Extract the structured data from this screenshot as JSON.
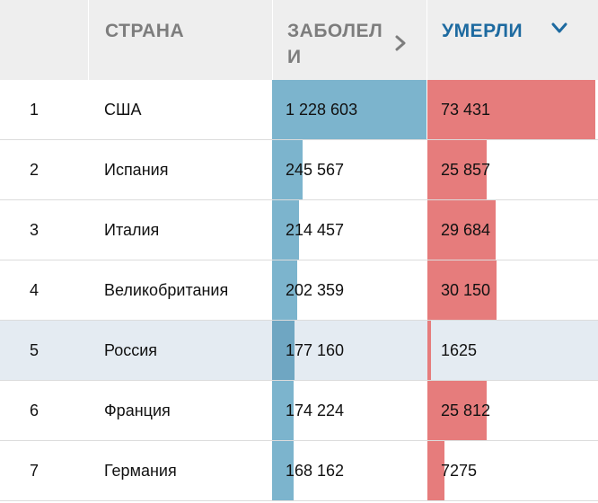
{
  "header": {
    "num_label": "",
    "country_label": "СТРАНА",
    "cases_label": "ЗАБОЛЕЛИ",
    "deaths_label": "УМЕРЛИ"
  },
  "icons": {
    "cases_sort": "chevron-right-icon",
    "deaths_sort": "chevron-down-icon"
  },
  "colors": {
    "cases_bar": "#7cb4cd",
    "deaths_bar": "#e67c7c",
    "active_header": "#1d6aa0",
    "highlight_row": "#e4ebf2"
  },
  "rows": [
    {
      "rank": "1",
      "country": "США",
      "cases": "1 228 603",
      "deaths": "73 431",
      "highlight": false
    },
    {
      "rank": "2",
      "country": "Испания",
      "cases": "245 567",
      "deaths": "25 857",
      "highlight": false
    },
    {
      "rank": "3",
      "country": "Италия",
      "cases": "214 457",
      "deaths": "29 684",
      "highlight": false
    },
    {
      "rank": "4",
      "country": "Великобритания",
      "cases": "202 359",
      "deaths": "30 150",
      "highlight": false
    },
    {
      "rank": "5",
      "country": "Россия",
      "cases": "177 160",
      "deaths": "1625",
      "highlight": true
    },
    {
      "rank": "6",
      "country": "Франция",
      "cases": "174 224",
      "deaths": "25 812",
      "highlight": false
    },
    {
      "rank": "7",
      "country": "Германия",
      "cases": "168 162",
      "deaths": "7275",
      "highlight": false
    }
  ]
}
